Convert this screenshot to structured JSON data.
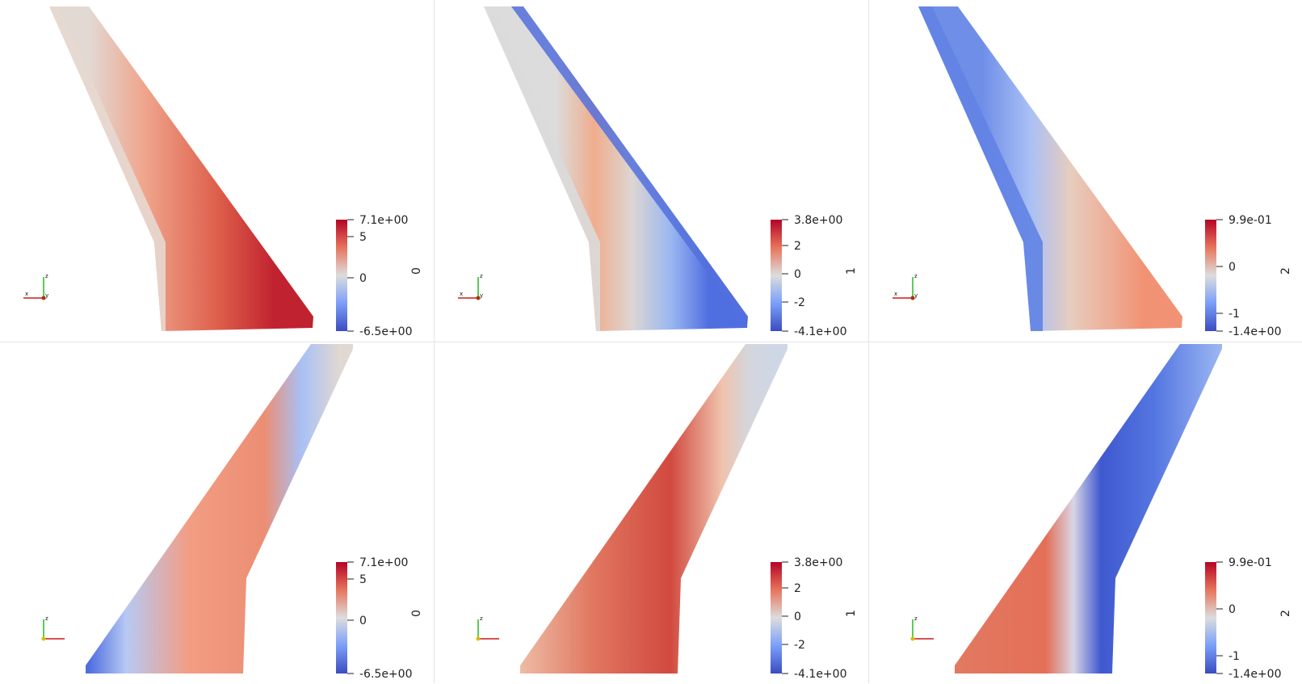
{
  "colors": {
    "hot": "#b40426",
    "cold": "#3b4cc0",
    "mid": "#dddddd",
    "gridline": "#e4e4e4"
  },
  "viewports": [
    {
      "id": "v0",
      "row": "top",
      "component": "0",
      "bar": {
        "max": "7.1e+00",
        "min": "-6.5e+00",
        "ticks": [
          "5",
          "0"
        ]
      }
    },
    {
      "id": "v1",
      "row": "top",
      "component": "1",
      "bar": {
        "max": "3.8e+00",
        "min": "-4.1e+00",
        "ticks": [
          "2",
          "0",
          "-2"
        ]
      }
    },
    {
      "id": "v2",
      "row": "top",
      "component": "2",
      "bar": {
        "max": "9.9e-01",
        "min": "-1.4e+00",
        "ticks": [
          "0",
          "-1"
        ]
      }
    },
    {
      "id": "v3",
      "row": "bottom",
      "component": "0",
      "bar": {
        "max": "7.1e+00",
        "min": "-6.5e+00",
        "ticks": [
          "5",
          "0"
        ]
      }
    },
    {
      "id": "v4",
      "row": "bottom",
      "component": "1",
      "bar": {
        "max": "3.8e+00",
        "min": "-4.1e+00",
        "ticks": [
          "2",
          "0",
          "-2"
        ]
      }
    },
    {
      "id": "v5",
      "row": "bottom",
      "component": "2",
      "bar": {
        "max": "9.9e-01",
        "min": "-1.4e+00",
        "ticks": [
          "0",
          "-1"
        ]
      }
    }
  ],
  "axes": {
    "top": {
      "x": "x",
      "y": "y",
      "z": "z"
    },
    "bottom": {
      "z": "z"
    }
  }
}
